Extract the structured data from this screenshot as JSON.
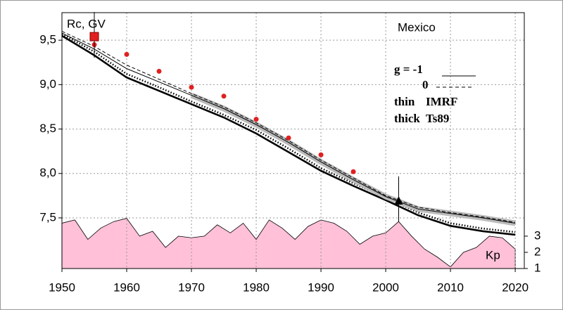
{
  "chart_data": {
    "type": "line",
    "annotations": [
      "Rc, GV",
      "Mexico",
      "g  = -1",
      "0",
      "thin",
      "IMRF",
      "thick",
      "Ts89",
      "Kp"
    ],
    "x": [
      1950,
      1955,
      1960,
      1965,
      1970,
      1975,
      1980,
      1985,
      1990,
      1995,
      2000,
      2005,
      2010,
      2015,
      2020
    ],
    "series": [
      {
        "color": "#000000",
        "style": "thick-solid",
        "values": [
          9.55,
          9.33,
          9.08,
          8.93,
          8.78,
          8.63,
          8.45,
          8.24,
          8.03,
          7.86,
          7.7,
          7.53,
          7.41,
          7.35,
          7.31
        ]
      },
      {
        "color": "#000000",
        "style": "thick-dotted",
        "values": [
          9.57,
          9.37,
          9.12,
          8.97,
          8.81,
          8.66,
          8.49,
          8.28,
          8.06,
          7.89,
          7.73,
          7.56,
          7.44,
          7.38,
          7.34
        ]
      },
      {
        "color": "#000000",
        "style": "thin-solid",
        "values": [
          9.58,
          9.4,
          9.18,
          9.03,
          8.88,
          8.73,
          8.55,
          8.35,
          8.13,
          7.93,
          7.74,
          7.6,
          7.55,
          7.5,
          7.44
        ]
      },
      {
        "color": "#000000",
        "style": "thin-dashed",
        "values": [
          9.6,
          9.43,
          9.22,
          9.06,
          8.9,
          8.75,
          8.57,
          8.37,
          8.15,
          7.95,
          7.75,
          7.62,
          7.56,
          7.51,
          7.45
        ]
      },
      {
        "type": "scatter",
        "color": "#e02020",
        "x": [
          1955,
          1960,
          1965,
          1970,
          1975,
          1980,
          1985,
          1990,
          1995
        ],
        "values": [
          9.45,
          9.34,
          9.15,
          8.97,
          8.87,
          8.61,
          8.4,
          8.21,
          8.02
        ]
      },
      {
        "type": "area",
        "axis": "y2",
        "color": "#ffc0d8",
        "x": [
          1950,
          1952,
          1954,
          1956,
          1958,
          1960,
          1962,
          1964,
          1966,
          1968,
          1970,
          1972,
          1974,
          1976,
          1978,
          1980,
          1982,
          1984,
          1986,
          1988,
          1990,
          1992,
          1994,
          1996,
          1998,
          2000,
          2002,
          2004,
          2006,
          2008,
          2010,
          2012,
          2014,
          2016,
          2018,
          2020
        ],
        "values": [
          3.8,
          4.0,
          2.8,
          3.5,
          3.9,
          4.1,
          3.0,
          3.3,
          2.3,
          3.0,
          2.9,
          3.0,
          3.7,
          3.2,
          3.8,
          2.8,
          4.0,
          3.5,
          2.8,
          3.6,
          4.0,
          3.8,
          3.3,
          2.5,
          3.0,
          3.2,
          3.9,
          3.0,
          2.2,
          1.7,
          1.1,
          2.0,
          2.3,
          3.0,
          2.9,
          2.2
        ]
      }
    ],
    "markers": [
      {
        "shape": "square",
        "color": "#e02020",
        "x": 1955,
        "y": 9.54
      },
      {
        "shape": "triangle",
        "color": "#000000",
        "x": 2002,
        "y": 7.69
      }
    ],
    "xlim": [
      1950,
      2021.4
    ],
    "xticks": [
      1950,
      1960,
      1970,
      1980,
      1990,
      2000,
      2010,
      2020
    ],
    "ylim": [
      6.93,
      9.81
    ],
    "yticks": [
      {
        "value": 7.5,
        "label": "7,5"
      },
      {
        "value": 8.0,
        "label": "8,0"
      },
      {
        "value": 8.5,
        "label": "8,5"
      },
      {
        "value": 9.0,
        "label": "9,0"
      },
      {
        "value": 9.5,
        "label": "9,5"
      }
    ],
    "y2lim": [
      1,
      16.8
    ],
    "y2ticks": [
      1,
      2,
      3
    ],
    "grid": true
  }
}
